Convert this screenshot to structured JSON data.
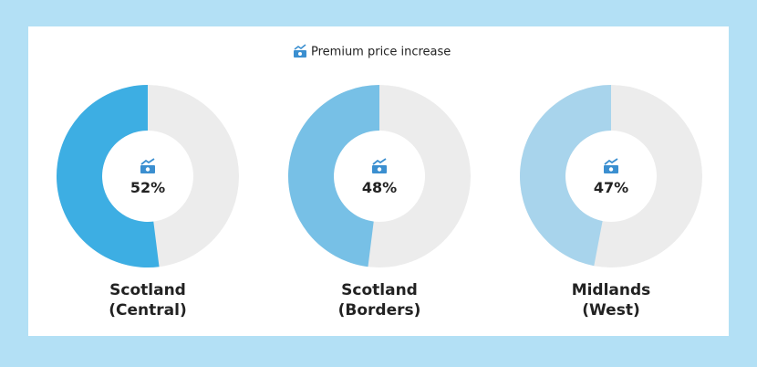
{
  "legend": {
    "label": "Premium price increase"
  },
  "chart_data": [
    {
      "type": "donut",
      "title": "Scotland (Central)",
      "values": [
        52
      ],
      "value_labels": [
        "52%"
      ],
      "color": "#3daee3",
      "rest_color": "#ececec"
    },
    {
      "type": "donut",
      "title": "Scotland (Borders)",
      "values": [
        48
      ],
      "value_labels": [
        "48%"
      ],
      "color": "#77c0e6",
      "rest_color": "#ececec"
    },
    {
      "type": "donut",
      "title": "Midlands (West)",
      "values": [
        47
      ],
      "value_labels": [
        "47%"
      ],
      "color": "#a8d4ec",
      "rest_color": "#ececec"
    }
  ]
}
